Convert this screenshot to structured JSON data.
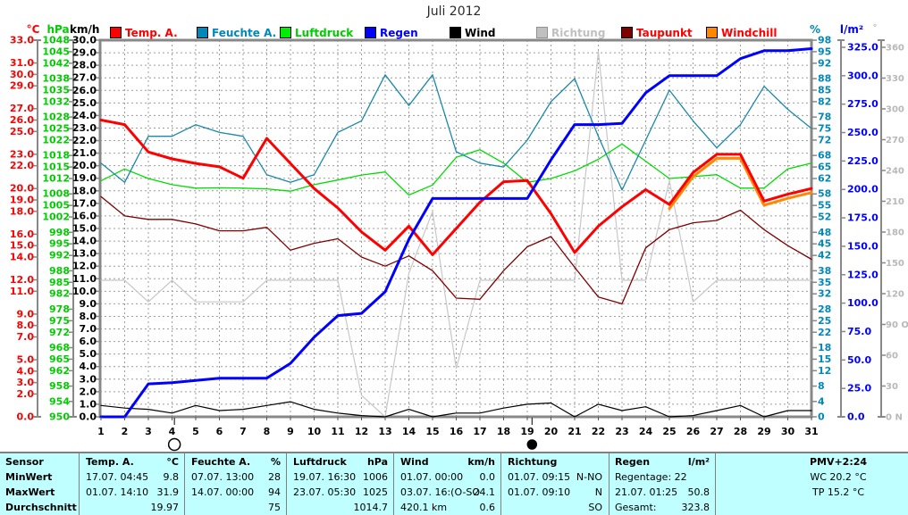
{
  "title": "Juli 2012",
  "legend": [
    {
      "label": "Temp. A.",
      "square_color": "#ff0000",
      "label_color": "#ff0000"
    },
    {
      "label": "Feuchte A.",
      "square_color": "#0088bb",
      "label_color": "#0088bb"
    },
    {
      "label": "Luftdruck",
      "square_color": "#00ee00",
      "label_color": "#00cc00"
    },
    {
      "label": "Regen",
      "square_color": "#0000ff",
      "label_color": "#0000ff"
    },
    {
      "label": "Wind",
      "square_color": "#000000",
      "label_color": "#000000"
    },
    {
      "label": "Richtung",
      "square_color": "#c0c0c0",
      "label_color": "#c0c0c0"
    },
    {
      "label": "Taupunkt",
      "square_color": "#800000",
      "label_color": "#ff0000"
    },
    {
      "label": "Windchill",
      "square_color": "#ff8800",
      "label_color": "#ff0000"
    }
  ],
  "axes": {
    "left": [
      {
        "id": "c",
        "header": "°C",
        "color": "#ff0000",
        "labels": [
          "33.0",
          "31.0",
          "30.0",
          "29.0",
          "27.0",
          "26.0",
          "25.0",
          "23.0",
          "22.0",
          "20.0",
          "19.0",
          "18.0",
          "16.0",
          "15.0",
          "14.0",
          "12.0",
          "11.0",
          "9.0",
          "8.0",
          "7.0",
          "5.0",
          "4.0",
          "3.0",
          "2.0",
          "0.0"
        ]
      },
      {
        "id": "hpa",
        "header": "hPa",
        "color": "#00cc00",
        "labels": [
          "1048",
          "1045",
          "1042",
          "1038",
          "1035",
          "1032",
          "1028",
          "1025",
          "1022",
          "1018",
          "1015",
          "1012",
          "1008",
          "1005",
          "1002",
          "998",
          "995",
          "992",
          "988",
          "985",
          "982",
          "978",
          "975",
          "972",
          "968",
          "965",
          "962",
          "958",
          "954",
          "950"
        ]
      },
      {
        "id": "kmh",
        "header": "km/h",
        "color": "#000000",
        "labels": [
          "30.0",
          "29.0",
          "28.0",
          "27.0",
          "26.0",
          "25.0",
          "24.0",
          "23.0",
          "22.0",
          "21.0",
          "20.0",
          "19.0",
          "18.0",
          "17.0",
          "16.0",
          "15.0",
          "14.0",
          "13.0",
          "12.0",
          "11.0",
          "10.0",
          "9.0",
          "8.0",
          "7.0",
          "6.0",
          "5.0",
          "4.0",
          "3.0",
          "2.0",
          "1.0",
          "0.0"
        ]
      }
    ],
    "right": [
      {
        "id": "pct",
        "header": "%",
        "color": "#0088bb",
        "labels": [
          "98",
          "95",
          "92",
          "88",
          "85",
          "82",
          "78",
          "75",
          "72",
          "68",
          "65",
          "62",
          "58",
          "55",
          "52",
          "48",
          "45",
          "42",
          "38",
          "35",
          "32",
          "28",
          "25",
          "22",
          "18",
          "15",
          "12",
          "8",
          "4",
          "0"
        ]
      },
      {
        "id": "lm2",
        "header": "l/m²",
        "color": "#0000ff",
        "labels": [
          "325.0",
          "300.0",
          "275.0",
          "250.0",
          "225.0",
          "200.0",
          "175.0",
          "150.0",
          "125.0",
          "100.0",
          "75.0",
          "50.0",
          "25.0",
          "0.0"
        ]
      },
      {
        "id": "deg",
        "header": "°",
        "color": "#b8b8b8",
        "labels": [
          "360 N",
          "330",
          "300",
          "270 W",
          "240",
          "210",
          "180 S",
          "150",
          "120",
          "90 O",
          "60",
          "30",
          "0 N"
        ]
      }
    ]
  },
  "x_axis": {
    "days": [
      1,
      2,
      3,
      4,
      5,
      6,
      7,
      8,
      9,
      10,
      11,
      12,
      13,
      14,
      15,
      16,
      17,
      18,
      19,
      20,
      21,
      22,
      23,
      24,
      25,
      26,
      27,
      28,
      29,
      30,
      31
    ],
    "moons": [
      {
        "day": 4.1,
        "phase": "full"
      },
      {
        "day": 19.2,
        "phase": "new"
      }
    ]
  },
  "chart_data": {
    "type": "line",
    "title": "Juli 2012",
    "x": [
      1,
      2,
      3,
      4,
      5,
      6,
      7,
      8,
      9,
      10,
      11,
      12,
      13,
      14,
      15,
      16,
      17,
      18,
      19,
      20,
      21,
      22,
      23,
      24,
      25,
      26,
      27,
      28,
      29,
      30,
      31
    ],
    "axis_ranges": {
      "c": [
        0,
        33
      ],
      "kmh": [
        0,
        30
      ],
      "hpa": [
        950,
        1048
      ],
      "pct": [
        0,
        98
      ],
      "lm2": [
        0,
        325
      ],
      "deg": [
        0,
        360
      ]
    },
    "grid": "dashed both directions, 1 day / 1 km-h unit",
    "legend_position": "top",
    "series": [
      {
        "name": "Richtung",
        "axis": "deg",
        "color": "#c8c8c8",
        "width": 1.2,
        "values": [
          133,
          133,
          112,
          133,
          112,
          112,
          112,
          133,
          133,
          133,
          133,
          21,
          0,
          140,
          200,
          47,
          133,
          133,
          133,
          133,
          133,
          356,
          133,
          133,
          230,
          112,
          133,
          133,
          133,
          133,
          133
        ]
      },
      {
        "name": "Luftdruck",
        "axis": "hpa",
        "color": "#00dd00",
        "width": 1.3,
        "values": [
          1011.4,
          1014.5,
          1012.0,
          1010.4,
          1009.5,
          1009.6,
          1009.5,
          1009.3,
          1008.7,
          1010.4,
          1011.6,
          1012.9,
          1013.7,
          1007.7,
          1010.3,
          1017.5,
          1019.5,
          1016.0,
          1011.0,
          1012.0,
          1014.0,
          1017.0,
          1021.0,
          1016.5,
          1012.0,
          1012.5,
          1013.0,
          1009.5,
          1009.5,
          1014.5,
          1016.0
        ]
      },
      {
        "name": "Feuchte A.",
        "axis": "pct",
        "color": "#1a88aa",
        "width": 1.3,
        "values": [
          66,
          61,
          73,
          73,
          76,
          74,
          73,
          63,
          61,
          63,
          74,
          77,
          89,
          81,
          89,
          69,
          66,
          65,
          72,
          82,
          88,
          73,
          59,
          72,
          85,
          77,
          70,
          76,
          86,
          80,
          75
        ]
      },
      {
        "name": "Taupunkt",
        "axis": "c",
        "color": "#800000",
        "width": 1.3,
        "values": [
          19.3,
          17.6,
          17.3,
          17.3,
          16.9,
          16.3,
          16.3,
          16.6,
          14.6,
          15.2,
          15.6,
          14.0,
          13.2,
          14.1,
          12.8,
          10.4,
          10.3,
          12.8,
          14.9,
          15.8,
          13.1,
          10.5,
          9.9,
          14.8,
          16.4,
          17.0,
          17.2,
          18.1,
          16.4,
          15.0,
          13.8
        ]
      },
      {
        "name": "Windchill",
        "axis": "c",
        "color": "#ff8800",
        "width": 3,
        "offset_y": 2,
        "values": [
          null,
          null,
          null,
          null,
          null,
          null,
          null,
          null,
          null,
          null,
          null,
          null,
          null,
          null,
          null,
          null,
          null,
          null,
          null,
          null,
          null,
          null,
          null,
          null,
          18.4,
          21.2,
          22.8,
          22.8,
          18.7,
          19.3,
          19.8
        ]
      },
      {
        "name": "Wind",
        "axis": "kmh",
        "color": "#000000",
        "width": 1.2,
        "values": [
          0.9,
          0.7,
          0.6,
          0.3,
          0.9,
          0.5,
          0.6,
          0.9,
          1.2,
          0.6,
          0.3,
          0.1,
          0.0,
          0.6,
          0.0,
          0.3,
          0.3,
          0.7,
          1.0,
          1.1,
          0.0,
          1.0,
          0.5,
          0.8,
          0.0,
          0.1,
          0.5,
          0.9,
          0.0,
          0.5,
          0.5
        ]
      },
      {
        "name": "Temp. A.",
        "axis": "c",
        "color": "#ff0000",
        "width": 3,
        "values": [
          26.0,
          25.6,
          23.2,
          22.6,
          22.2,
          21.9,
          20.9,
          24.4,
          22.2,
          20.0,
          18.3,
          16.2,
          14.6,
          16.7,
          14.2,
          16.5,
          18.8,
          20.6,
          20.7,
          17.8,
          14.4,
          16.7,
          18.4,
          19.9,
          18.6,
          21.4,
          23.0,
          23.0,
          18.9,
          19.5,
          20.0
        ]
      },
      {
        "name": "Regen",
        "axis": "lm2",
        "color": "#0000ff",
        "width": 3,
        "values": [
          0,
          0,
          29,
          30,
          32,
          34,
          34,
          34,
          47,
          70,
          89,
          91,
          110,
          156,
          192,
          192,
          192,
          192,
          192,
          226,
          257,
          257,
          258,
          285,
          300,
          300,
          300,
          315,
          322,
          322,
          323.8
        ]
      }
    ]
  },
  "table": {
    "row_labels": [
      "Sensor",
      "MinWert",
      "MaxWert",
      "Durchschnitt"
    ],
    "columns": [
      {
        "header": "Temp. A.",
        "unit": "°C",
        "min_l": "17.07.  04:45",
        "min_r": "9.8",
        "max_l": "01.07.  14:10",
        "max_r": "31.9",
        "avg_l": "",
        "avg_r": "19.97"
      },
      {
        "header": "Feuchte A.",
        "unit": "%",
        "min_l": "07.07.  13:00",
        "min_r": "28",
        "max_l": "14.07.  00:00",
        "max_r": "94",
        "avg_l": "",
        "avg_r": "75"
      },
      {
        "header": "Luftdruck",
        "unit": "hPa",
        "min_l": "19.07.  16:30",
        "min_r": "1006",
        "max_l": "23.07.  05:30",
        "max_r": "1025",
        "avg_l": "",
        "avg_r": "1014.7"
      },
      {
        "header": "Wind",
        "unit": "km/h",
        "min_l": "01.07.  00:00",
        "min_r": "0.0",
        "max_l": "03.07.  16:(O-SO",
        "max_r": "24.1",
        "avg_l": "420.1 km",
        "avg_r": "0.6"
      },
      {
        "header": "Richtung",
        "unit": "",
        "min_l": "01.07.  09:15",
        "min_r": "N-NO",
        "max_l": "01.07.  09:10",
        "max_r": "N",
        "avg_l": "",
        "avg_r": "SO"
      },
      {
        "header": "Regen",
        "unit": "l/m²",
        "min_l": "Regentage: 22",
        "min_r": "",
        "max_l": "21.07.  01:25",
        "max_r": "50.8",
        "avg_l": "Gesamt:",
        "avg_r": "323.8"
      }
    ],
    "pmv": {
      "title": "PMV+2:24",
      "line2": "WC 20.2 °C",
      "line3": "TP 15.2 °C"
    }
  }
}
